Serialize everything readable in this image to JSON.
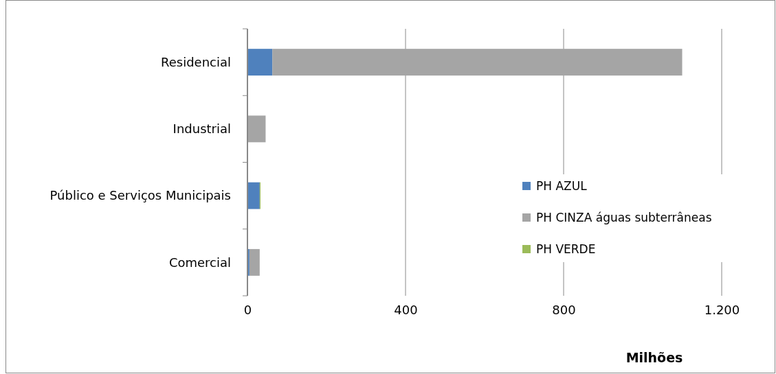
{
  "chart_data": {
    "type": "bar",
    "orientation": "horizontal",
    "stacked": true,
    "categories": [
      "Residencial",
      "Industrial",
      "Público e Serviços Municipais",
      "Comercial"
    ],
    "series": [
      {
        "name": "PH AZUL",
        "color": "#4f81bd",
        "values": [
          63,
          0,
          31,
          5
        ]
      },
      {
        "name": "PH CINZA águas subterrâneas",
        "color": "#a5a5a5",
        "values": [
          1037,
          46,
          0,
          26
        ]
      },
      {
        "name": "PH VERDE",
        "color": "#9bbb59",
        "values": [
          0,
          0,
          2,
          0
        ]
      }
    ],
    "xlim": [
      0,
      1200
    ],
    "xticks": [
      0,
      400,
      800,
      {
        "value": 1200,
        "label": "1.200"
      }
    ],
    "xlabel": "Milhões",
    "grid": "x",
    "legend": "right"
  }
}
